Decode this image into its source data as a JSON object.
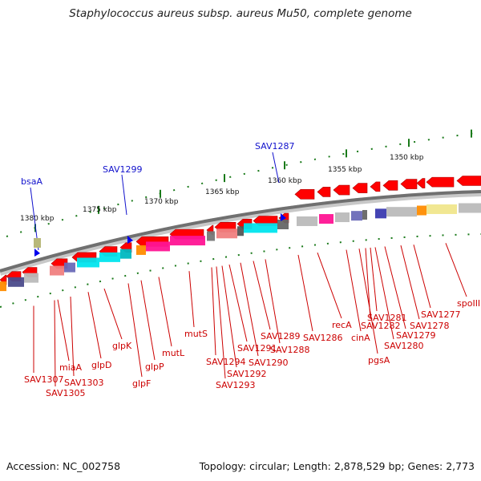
{
  "title": "Staphylococcus aureus subsp. aureus Mu50, complete genome",
  "footer": {
    "accession": "Accession: NC_002758",
    "topology": "Topology: circular; Length: 2,878,529 bp; Genes: 2,773"
  },
  "scale_labels": [
    "1380 kbp",
    "1375 kbp",
    "1370 kbp",
    "1365 kbp",
    "1360 kbp",
    "1355 kbp",
    "1350 kbp"
  ],
  "highlighted_genes": [
    "bsaA",
    "SAV1299",
    "SAV1287"
  ],
  "gene_labels": [
    "SAV1307",
    "SAV1305",
    "miaA",
    "SAV1303",
    "glpD",
    "glpK",
    "glpF",
    "glpP",
    "mutL",
    "mutS",
    "SAV1294",
    "SAV1293",
    "SAV1292",
    "SAV1291",
    "SAV1290",
    "SAV1289",
    "SAV1288",
    "SAV1286",
    "recA",
    "cinA",
    "pgsA",
    "SAV1282",
    "SAV1281",
    "SAV1280",
    "SAV1279",
    "SAV1278",
    "SAV1277",
    "spoIIIE"
  ],
  "colors": {
    "gene_arrow": "#ff0000",
    "gene_label": "#cc0000",
    "highlight_label": "#1111cc",
    "scale": "#1a7a1a",
    "backbone": "#707070"
  }
}
